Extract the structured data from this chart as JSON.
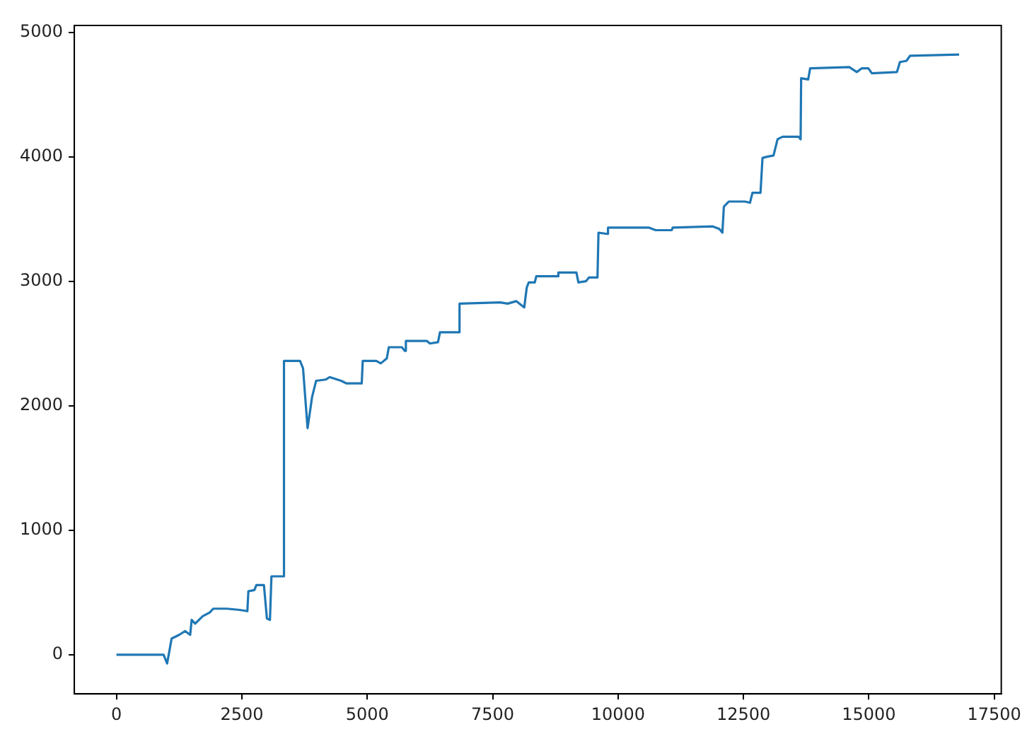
{
  "chart_data": {
    "type": "line",
    "x": [
      0,
      940,
      1010,
      1100,
      1250,
      1370,
      1470,
      1500,
      1570,
      1720,
      1860,
      1930,
      2200,
      2460,
      2610,
      2630,
      2750,
      2790,
      2940,
      3000,
      3060,
      3090,
      3320,
      3340,
      3660,
      3720,
      3810,
      3900,
      3980,
      4170,
      4250,
      4480,
      4580,
      4890,
      4910,
      5180,
      5270,
      5390,
      5430,
      5690,
      5750,
      5770,
      6190,
      6250,
      6410,
      6450,
      6820,
      6840,
      7650,
      7800,
      7970,
      8130,
      8180,
      8220,
      8340,
      8370,
      8790,
      8810,
      9170,
      9210,
      9360,
      9420,
      9590,
      9610,
      9780,
      9800,
      10620,
      10750,
      11070,
      11090,
      11890,
      12020,
      12080,
      12110,
      12210,
      12530,
      12630,
      12680,
      12840,
      12880,
      12970,
      13100,
      13180,
      13280,
      13600,
      13640,
      13650,
      13790,
      13830,
      14610,
      14760,
      14860,
      14990,
      15060,
      15560,
      15620,
      15750,
      15820,
      16800
    ],
    "series": [
      {
        "color": "#1f77b4",
        "values": [
          0,
          0,
          -70,
          130,
          160,
          190,
          160,
          280,
          250,
          310,
          340,
          370,
          370,
          360,
          350,
          510,
          520,
          560,
          560,
          290,
          280,
          630,
          630,
          2360,
          2360,
          2300,
          1820,
          2070,
          2200,
          2210,
          2230,
          2200,
          2180,
          2180,
          2360,
          2360,
          2340,
          2380,
          2470,
          2470,
          2440,
          2520,
          2520,
          2500,
          2510,
          2590,
          2590,
          2820,
          2830,
          2820,
          2840,
          2790,
          2950,
          2990,
          2990,
          3040,
          3040,
          3070,
          3070,
          2990,
          3000,
          3030,
          3030,
          3390,
          3380,
          3430,
          3430,
          3410,
          3410,
          3430,
          3440,
          3420,
          3390,
          3600,
          3640,
          3640,
          3630,
          3710,
          3710,
          3990,
          4000,
          4010,
          4140,
          4160,
          4160,
          4140,
          4630,
          4620,
          4710,
          4720,
          4680,
          4710,
          4710,
          4670,
          4680,
          4760,
          4770,
          4810,
          4820
        ]
      }
    ],
    "xlim": [
      -840,
      17640
    ],
    "ylim": [
      -314,
      5054
    ],
    "xticks": [
      0,
      2500,
      5000,
      7500,
      10000,
      12500,
      15000,
      17500
    ],
    "yticks": [
      0,
      1000,
      2000,
      3000,
      4000,
      5000
    ],
    "grid": false,
    "legend": false,
    "marker": "none",
    "line_style": "solid"
  }
}
